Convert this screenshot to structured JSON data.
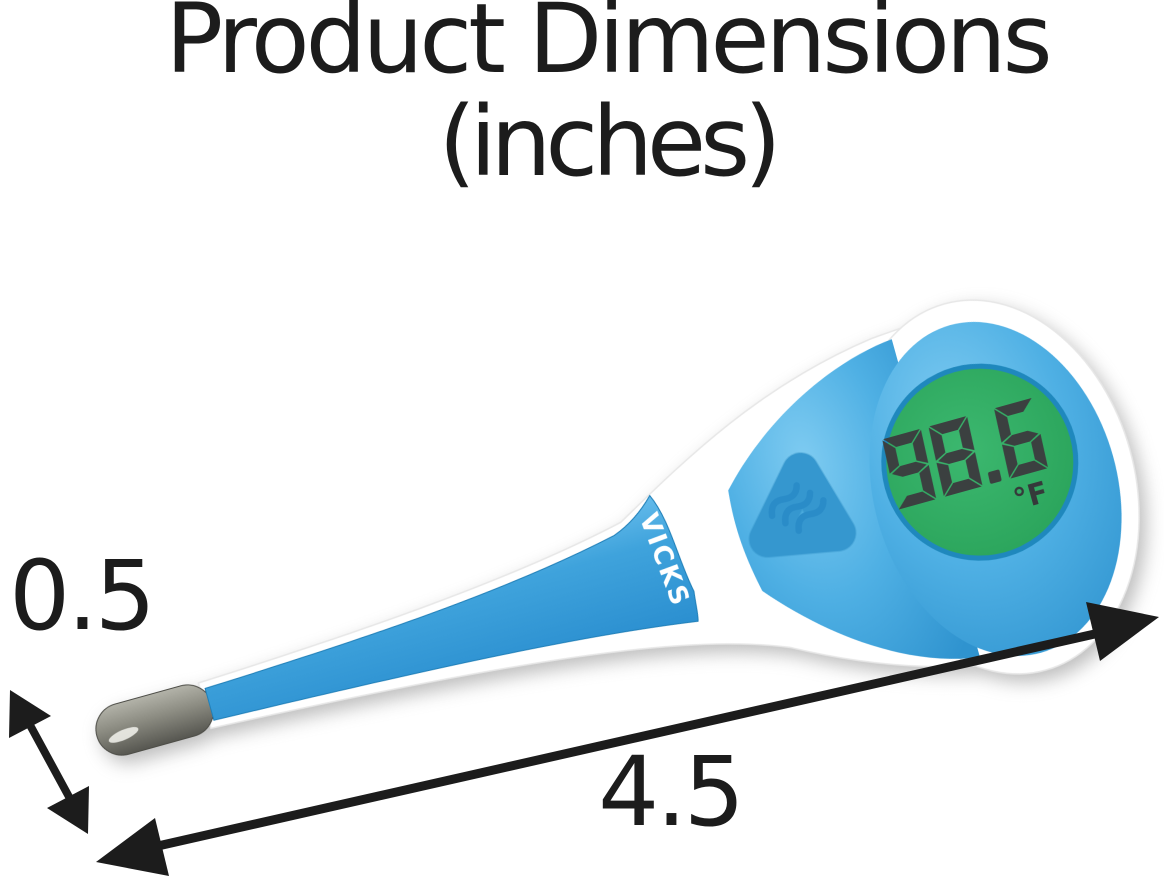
{
  "title": {
    "line1": "Product Dimensions",
    "line2": "(inches)"
  },
  "product": {
    "kind": "digital stick thermometer",
    "brand": "VICKS",
    "display": {
      "value": "98.6",
      "unit": "°F"
    }
  },
  "dimensions": {
    "width_in": "0.5",
    "length_in": "4.5"
  },
  "colors": {
    "body_blue": "#3fa3dc",
    "body_blue_light": "#6ec2ee",
    "body_blue_dark": "#2488c7",
    "head_blue": "#4fb0e4",
    "display_green": "#2fae63",
    "lcd_segment": "#3b4040",
    "metal_light": "#aaaaa0",
    "metal_dark": "#565650",
    "shell_white": "#ffffff",
    "annotation": "#1c1c1c"
  }
}
